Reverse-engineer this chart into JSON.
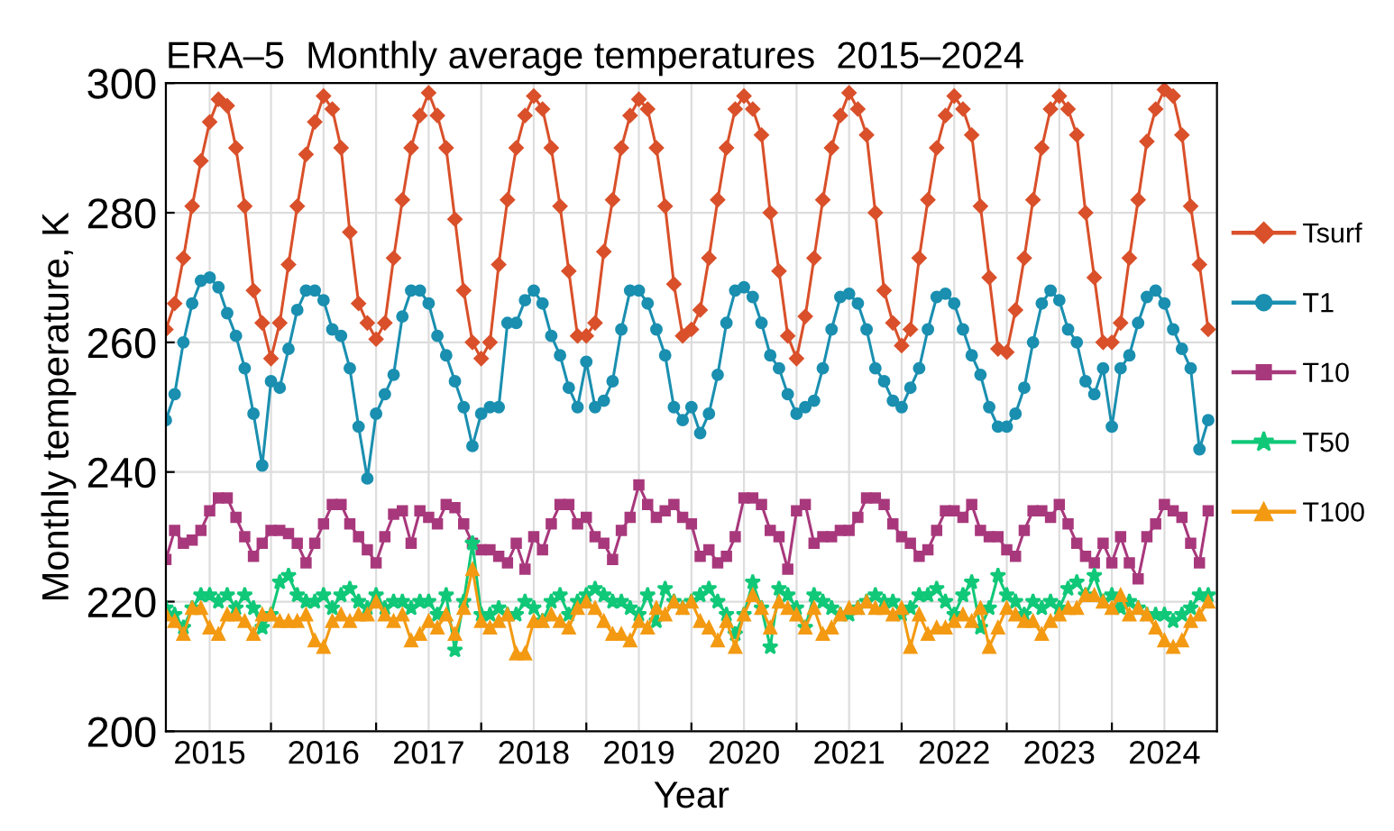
{
  "chart_data": {
    "type": "line",
    "title": "ERA–5  Monthly average temperatures  2015–2024",
    "xlabel": "Year",
    "ylabel": "Monthly temperature, K",
    "x": [
      "2015-01",
      "2015-02",
      "2015-03",
      "2015-04",
      "2015-05",
      "2015-06",
      "2015-07",
      "2015-08",
      "2015-09",
      "2015-10",
      "2015-11",
      "2015-12",
      "2016-01",
      "2016-02",
      "2016-03",
      "2016-04",
      "2016-05",
      "2016-06",
      "2016-07",
      "2016-08",
      "2016-09",
      "2016-10",
      "2016-11",
      "2016-12",
      "2017-01",
      "2017-02",
      "2017-03",
      "2017-04",
      "2017-05",
      "2017-06",
      "2017-07",
      "2017-08",
      "2017-09",
      "2017-10",
      "2017-11",
      "2017-12",
      "2018-01",
      "2018-02",
      "2018-03",
      "2018-04",
      "2018-05",
      "2018-06",
      "2018-07",
      "2018-08",
      "2018-09",
      "2018-10",
      "2018-11",
      "2018-12",
      "2019-01",
      "2019-02",
      "2019-03",
      "2019-04",
      "2019-05",
      "2019-06",
      "2019-07",
      "2019-08",
      "2019-09",
      "2019-10",
      "2019-11",
      "2019-12",
      "2020-01",
      "2020-02",
      "2020-03",
      "2020-04",
      "2020-05",
      "2020-06",
      "2020-07",
      "2020-08",
      "2020-09",
      "2020-10",
      "2020-11",
      "2020-12",
      "2021-01",
      "2021-02",
      "2021-03",
      "2021-04",
      "2021-05",
      "2021-06",
      "2021-07",
      "2021-08",
      "2021-09",
      "2021-10",
      "2021-11",
      "2021-12",
      "2022-01",
      "2022-02",
      "2022-03",
      "2022-04",
      "2022-05",
      "2022-06",
      "2022-07",
      "2022-08",
      "2022-09",
      "2022-10",
      "2022-11",
      "2022-12",
      "2023-01",
      "2023-02",
      "2023-03",
      "2023-04",
      "2023-05",
      "2023-06",
      "2023-07",
      "2023-08",
      "2023-09",
      "2023-10",
      "2023-11",
      "2023-12",
      "2024-01",
      "2024-02",
      "2024-03",
      "2024-04",
      "2024-05",
      "2024-06",
      "2024-07",
      "2024-08",
      "2024-09",
      "2024-10",
      "2024-11",
      "2024-12"
    ],
    "xlim": [
      "2015-01",
      "2025-01"
    ],
    "xticks": [
      {
        "value": "2015-06",
        "label": "2015"
      },
      {
        "value": "2016-07",
        "label": "2016"
      },
      {
        "value": "2017-07",
        "label": "2017"
      },
      {
        "value": "2018-07",
        "label": "2018"
      },
      {
        "value": "2019-07",
        "label": "2019"
      },
      {
        "value": "2020-07",
        "label": "2020"
      },
      {
        "value": "2021-07",
        "label": "2021"
      },
      {
        "value": "2022-07",
        "label": "2022"
      },
      {
        "value": "2023-07",
        "label": "2023"
      },
      {
        "value": "2024-07",
        "label": "2024"
      },
      {
        "value": "2016-01",
        "label": null
      },
      {
        "value": "2017-01",
        "label": null
      },
      {
        "value": "2018-01",
        "label": null
      },
      {
        "value": "2019-01",
        "label": null
      },
      {
        "value": "2020-01",
        "label": null
      },
      {
        "value": "2021-01",
        "label": null
      },
      {
        "value": "2022-01",
        "label": null
      },
      {
        "value": "2023-01",
        "label": null
      },
      {
        "value": "2024-01",
        "label": null
      }
    ],
    "ylim": [
      200,
      300
    ],
    "yticks": [
      200,
      220,
      240,
      260,
      280,
      300
    ],
    "grid": true,
    "legend": "right",
    "series": [
      {
        "name": "Tsurf",
        "color": "#d9502a",
        "marker": "diamond",
        "values": [
          262,
          266,
          273,
          281,
          288,
          294,
          297.5,
          296.5,
          290,
          281,
          268,
          263,
          257.5,
          263,
          272,
          281,
          289,
          294,
          298,
          296,
          290,
          277,
          266,
          263,
          260.5,
          263,
          273,
          282,
          290,
          295,
          298.5,
          295,
          290,
          279,
          268,
          260,
          257.5,
          260,
          272,
          282,
          290,
          295,
          298,
          296,
          290,
          281,
          271,
          261,
          261,
          263,
          274,
          282,
          290,
          295,
          297.5,
          296,
          290,
          281,
          269,
          261,
          262,
          265,
          273,
          282,
          290,
          296,
          298,
          296,
          292,
          280,
          271,
          261,
          257.5,
          264,
          273,
          282,
          290,
          295,
          298.5,
          296,
          292,
          280,
          268,
          263,
          259.5,
          262,
          273,
          282,
          290,
          295,
          298,
          296,
          292,
          281,
          270,
          259,
          258.5,
          265,
          273,
          282,
          290,
          296,
          298,
          296,
          292,
          280,
          270,
          260,
          260,
          263,
          273,
          282,
          291,
          296,
          299,
          298,
          292,
          281,
          272,
          262
        ]
      },
      {
        "name": "T1",
        "color": "#1a8fb0",
        "marker": "circle",
        "values": [
          248,
          252,
          260,
          266,
          269.5,
          270,
          268.5,
          264.5,
          261,
          256,
          249,
          241,
          254,
          253,
          259,
          265,
          268,
          268,
          266.5,
          262,
          261,
          256,
          247,
          239,
          249,
          252,
          255,
          264,
          268,
          268,
          266,
          261,
          258,
          254,
          250,
          244,
          249,
          250,
          250,
          263,
          263,
          266.5,
          268,
          266,
          261,
          258,
          253,
          250,
          257,
          250,
          251,
          254,
          262,
          268,
          268,
          266,
          262,
          258,
          250,
          248,
          250,
          246,
          249,
          255,
          263,
          268,
          268.5,
          267,
          263,
          258,
          256,
          252,
          249,
          250,
          251,
          256,
          262,
          267,
          267.5,
          266,
          262,
          256,
          254,
          251,
          250,
          253,
          256,
          262,
          267,
          267.5,
          266,
          262,
          258,
          255,
          250,
          247,
          247,
          249,
          253,
          260,
          266,
          268,
          266.5,
          262,
          260,
          254,
          252,
          256,
          247,
          256,
          258,
          263,
          267,
          268,
          266,
          262,
          259,
          256,
          243.5,
          248
        ]
      },
      {
        "name": "T10",
        "color": "#a8387c",
        "marker": "square",
        "values": [
          226.5,
          231,
          229,
          229.5,
          231,
          234,
          236,
          236,
          233,
          230,
          227,
          229,
          231,
          231,
          230.5,
          229,
          226,
          229,
          232,
          235,
          235,
          232,
          230,
          228,
          226,
          230,
          233.5,
          234,
          229,
          234,
          233,
          232,
          235,
          234.5,
          232,
          229,
          228,
          228,
          227,
          226,
          229,
          225,
          230,
          228,
          232,
          235,
          235,
          232,
          233,
          230,
          229,
          226.5,
          231,
          233,
          238,
          235,
          233,
          234,
          235,
          233,
          232,
          227,
          228,
          226,
          227,
          230,
          236,
          236,
          235,
          231,
          230,
          225,
          234,
          235,
          229,
          230,
          230,
          231,
          231,
          233,
          236,
          236,
          235,
          232,
          230,
          229,
          227,
          228,
          231,
          234,
          234,
          233,
          235,
          231,
          230,
          230,
          228,
          227,
          231,
          234,
          234,
          233,
          235,
          232,
          229,
          227,
          226,
          229,
          226,
          230,
          226,
          223.5,
          230,
          232,
          235,
          234,
          233,
          229,
          226,
          234
        ]
      },
      {
        "name": "T50",
        "color": "#10c878",
        "marker": "star",
        "values": [
          219,
          218,
          216,
          219,
          221,
          221,
          220,
          221,
          219,
          221,
          219,
          216,
          218,
          223,
          224,
          221,
          220,
          220,
          221,
          219,
          221,
          222,
          220,
          219,
          221,
          219,
          220,
          220,
          219,
          220,
          220,
          218,
          221,
          212.5,
          220,
          229,
          218,
          218,
          219,
          218,
          218,
          220,
          219,
          217,
          220,
          221,
          218,
          220,
          221,
          222,
          221,
          220,
          220,
          219,
          218,
          221,
          217,
          222,
          220,
          219,
          220,
          221,
          222,
          220,
          218,
          215,
          218,
          223,
          219,
          213,
          222,
          221,
          219,
          216,
          221,
          220,
          219,
          218,
          218,
          219,
          220,
          221,
          220,
          220,
          218,
          219,
          221,
          221,
          222,
          220,
          218,
          221,
          223,
          216,
          219,
          224,
          221,
          220,
          218,
          220,
          219,
          220,
          219,
          222,
          223,
          221,
          224,
          220,
          221,
          219,
          220,
          219,
          218,
          218,
          218,
          217,
          218,
          219,
          221,
          221
        ]
      },
      {
        "name": "T100",
        "color": "#f39a12",
        "marker": "triangle",
        "values": [
          218,
          217,
          215,
          219,
          219,
          216,
          215,
          218,
          218,
          217,
          215,
          218,
          218,
          217,
          217,
          217,
          218,
          214,
          213,
          217,
          218,
          217,
          218,
          218,
          220,
          218,
          217,
          218,
          214,
          215,
          217,
          216,
          218,
          215,
          219,
          225,
          217,
          216,
          217,
          218,
          212,
          212,
          217,
          217,
          218,
          217,
          216,
          219,
          220,
          219,
          217,
          215,
          215,
          214,
          217,
          216,
          219,
          218,
          220,
          219,
          220,
          217,
          216,
          214,
          217,
          213,
          218,
          221,
          219,
          216,
          220,
          219,
          218,
          216,
          219,
          215,
          216,
          218,
          219,
          219,
          220,
          219,
          219,
          218,
          219,
          213,
          218,
          215,
          216,
          216,
          217,
          218,
          217,
          219,
          213,
          216,
          219,
          218,
          217,
          217,
          215,
          217,
          218,
          219,
          219,
          221,
          221,
          220,
          219,
          221,
          218,
          219,
          218,
          216,
          214,
          213,
          214,
          217,
          218,
          220
        ]
      }
    ]
  }
}
